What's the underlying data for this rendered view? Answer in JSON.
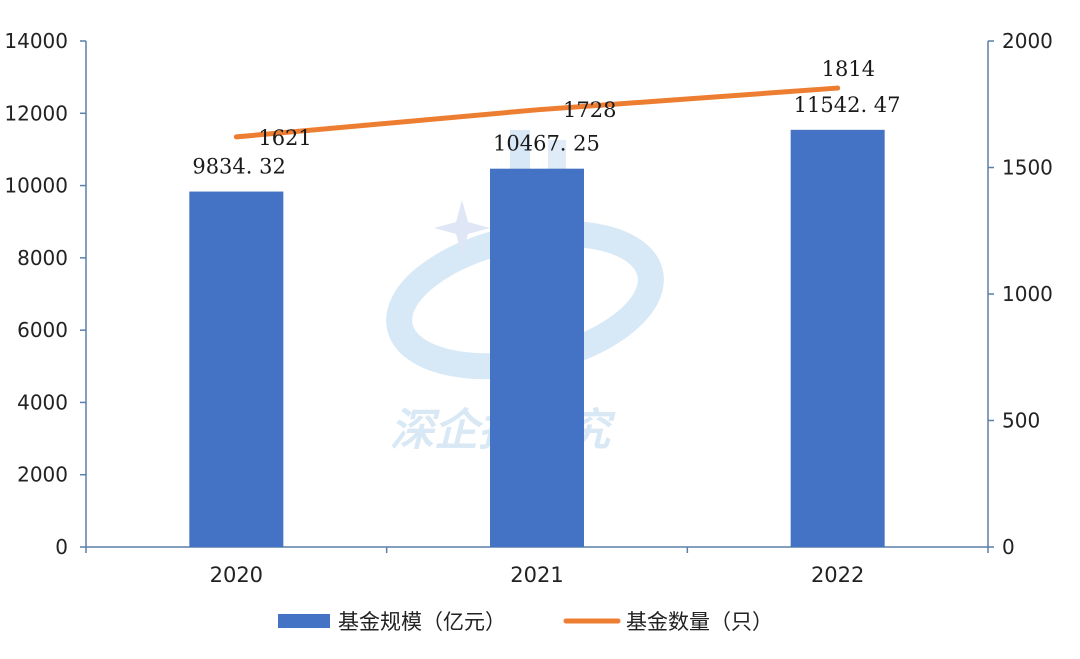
{
  "chart_data": {
    "type": "bar+line",
    "categories": [
      "2020",
      "2021",
      "2022"
    ],
    "series": [
      {
        "name": "基金规模（亿元）",
        "type": "bar",
        "axis": "left",
        "values": [
          9834.32,
          10467.25,
          11542.47
        ],
        "labels": [
          "9834. 32",
          "10467. 25",
          "11542. 47"
        ],
        "color": "#4472C4"
      },
      {
        "name": "基金数量（只）",
        "type": "line",
        "axis": "right",
        "values": [
          1621,
          1728,
          1814
        ],
        "labels": [
          "1621",
          "1728",
          "1814"
        ],
        "color": "#ED7D31"
      }
    ],
    "y_left": {
      "ylim": [
        0,
        14000
      ],
      "ticks": [
        "0",
        "2000",
        "4000",
        "6000",
        "8000",
        "10000",
        "12000",
        "14000"
      ]
    },
    "y_right": {
      "ylim": [
        0,
        2000
      ],
      "ticks": [
        "0",
        "500",
        "1000",
        "1500",
        "2000"
      ]
    },
    "legend": "bottom-center",
    "watermark": "深企投研究"
  }
}
